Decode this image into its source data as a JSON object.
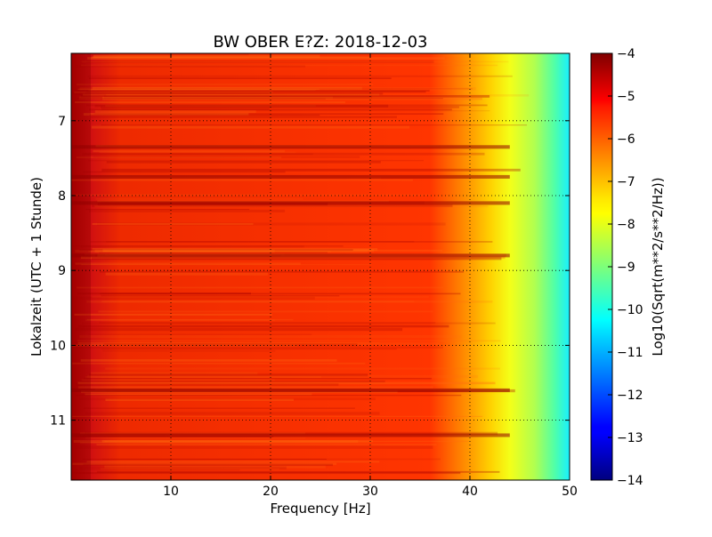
{
  "chart_data": {
    "type": "heatmap",
    "title": "BW OBER E?Z: 2018-12-03",
    "xlabel": "Frequency [Hz]",
    "ylabel": "Lokalzeit (UTC + 1 Stunde)",
    "xlim": [
      0,
      50
    ],
    "ylim": [
      6.1,
      11.8
    ],
    "x_ticks": [
      10,
      20,
      30,
      40,
      50
    ],
    "y_ticks": [
      7,
      8,
      9,
      10,
      11
    ],
    "grid": true,
    "colorbar": {
      "label": "Log10(Sqrt(m**2/s**2/Hz))",
      "range": [
        -14,
        -4
      ],
      "ticks": [
        -4,
        -5,
        -6,
        -7,
        -8,
        -9,
        -10,
        -11,
        -12,
        -13,
        -14
      ],
      "colormap": "jet"
    },
    "approx_level_by_frequency": {
      "frequency": [
        0,
        2,
        5,
        10,
        20,
        30,
        38,
        40,
        42,
        44,
        46,
        48,
        50
      ],
      "log10_amplitude": [
        -4.4,
        -4.8,
        -5.2,
        -5.4,
        -5.3,
        -5.3,
        -5.5,
        -6.0,
        -6.9,
        -7.6,
        -8.1,
        -8.8,
        -9.8
      ]
    },
    "dark_bands_hours": [
      7.35,
      7.75,
      8.1,
      8.8,
      10.6,
      11.2
    ]
  }
}
